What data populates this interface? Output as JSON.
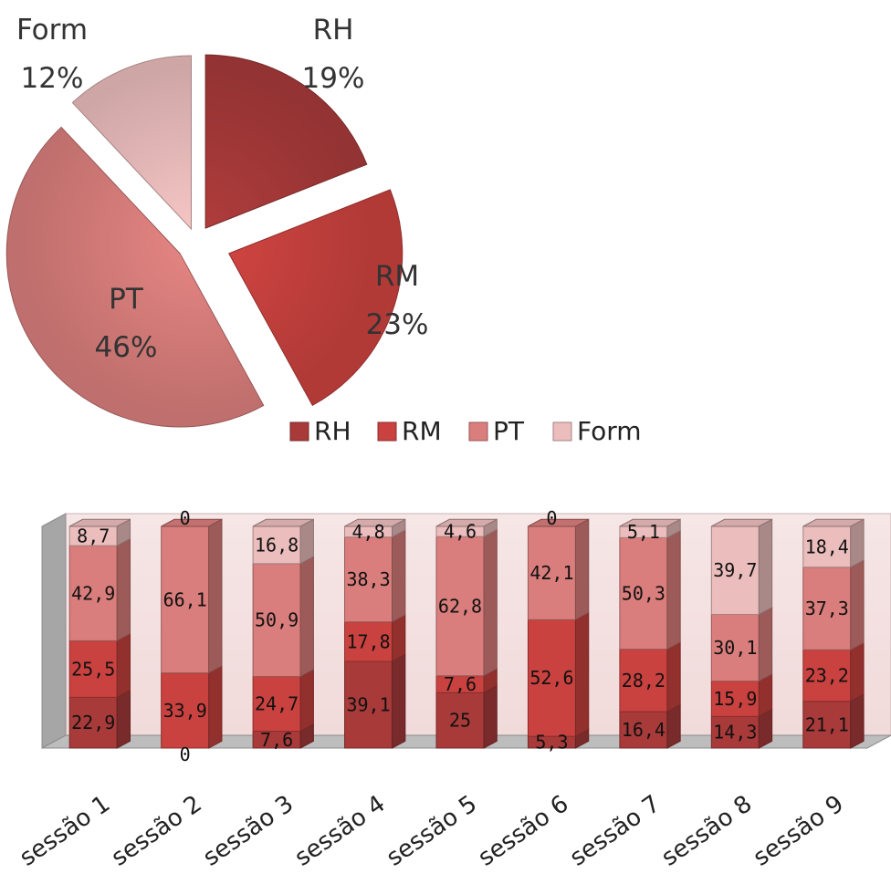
{
  "chart_data": [
    {
      "type": "pie",
      "exploded": true,
      "slices": [
        {
          "name": "RH",
          "value": 19,
          "label": "19%",
          "color": "#a83a3a"
        },
        {
          "name": "RM",
          "value": 23,
          "label": "23%",
          "color": "#c9423f"
        },
        {
          "name": "PT",
          "value": 46,
          "label": "46%",
          "color": "#d97e7c"
        },
        {
          "name": "Form",
          "value": 12,
          "label": "12%",
          "color": "#ebbdbd"
        }
      ]
    },
    {
      "type": "bar",
      "stacked": true,
      "style": "3d",
      "legend_position": "top",
      "legend": [
        "RH",
        "RM",
        "PT",
        "Form"
      ],
      "categories": [
        "sessão 1",
        "sessão 2",
        "sessão 3",
        "sessão 4",
        "sessão 5",
        "sessão 6",
        "sessão 7",
        "sessão 8",
        "sessão 9"
      ],
      "series": [
        {
          "name": "RH",
          "color": "#a83a3a",
          "values": [
            22.9,
            0,
            7.6,
            39.1,
            25,
            5.3,
            16.4,
            14.3,
            21.1
          ],
          "labels": [
            "22,9",
            "0",
            "7,6",
            "39,1",
            "25",
            "5,3",
            "16,4",
            "14,3",
            "21,1"
          ]
        },
        {
          "name": "RM",
          "color": "#c9423f",
          "values": [
            25.5,
            33.9,
            24.7,
            17.8,
            7.6,
            52.6,
            28.2,
            15.9,
            23.2
          ],
          "labels": [
            "25,5",
            "33,9",
            "24,7",
            "17,8",
            "7,6",
            "52,6",
            "28,2",
            "15,9",
            "23,2"
          ]
        },
        {
          "name": "PT",
          "color": "#d97e7c",
          "values": [
            42.9,
            66.1,
            50.9,
            38.3,
            62.8,
            42.1,
            50.3,
            30.1,
            37.3
          ],
          "labels": [
            "42,9",
            "66,1",
            "50,9",
            "38,3",
            "62,8",
            "42,1",
            "50,3",
            "30,1",
            "37,3"
          ]
        },
        {
          "name": "Form",
          "color": "#ebbdbd",
          "values": [
            8.7,
            0,
            16.8,
            4.8,
            4.6,
            0,
            5.1,
            39.7,
            18.4
          ],
          "labels": [
            "8,7",
            "0",
            "16,8",
            "4,8",
            "4,6",
            "0",
            "5,1",
            "39,7",
            "18,4"
          ]
        }
      ],
      "ylim": [
        0,
        100
      ]
    }
  ]
}
